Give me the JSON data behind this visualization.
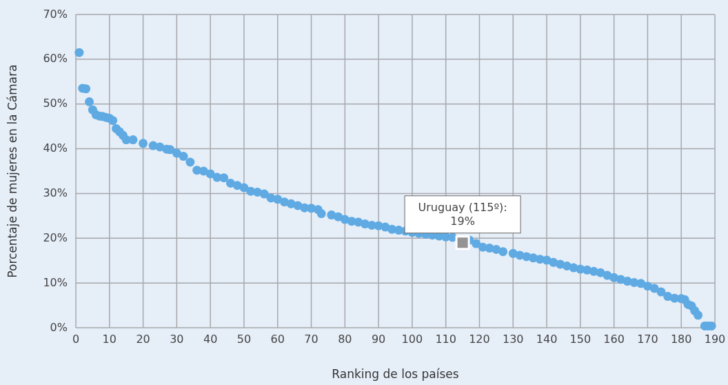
{
  "chart_data": {
    "type": "scatter",
    "xlabel": "Ranking de los países",
    "ylabel": "Porcentaje de mujeres en la Cámara",
    "xlim": [
      0,
      190
    ],
    "xticks": [
      0,
      10,
      20,
      30,
      40,
      50,
      60,
      70,
      80,
      90,
      100,
      110,
      120,
      130,
      140,
      150,
      160,
      170,
      180,
      190
    ],
    "ylim": [
      0,
      70
    ],
    "yticks": [
      {
        "value": 0,
        "label": "0%"
      },
      {
        "value": 10,
        "label": "10%"
      },
      {
        "value": 20,
        "label": "20%"
      },
      {
        "value": 30,
        "label": "30%"
      },
      {
        "value": 40,
        "label": "40%"
      },
      {
        "value": 50,
        "label": "50%"
      },
      {
        "value": 60,
        "label": "60%"
      },
      {
        "value": 70,
        "label": "70%"
      }
    ],
    "grid": true,
    "series": [
      {
        "color": "#5faae3",
        "marker": "circle",
        "x": [
          1,
          2,
          3,
          4,
          5,
          6,
          7,
          8,
          9,
          10,
          11,
          12,
          13,
          14,
          15,
          17,
          20,
          23,
          25,
          27,
          28,
          30,
          32,
          34,
          36,
          38,
          40,
          42,
          44,
          46,
          48,
          50,
          52,
          54,
          56,
          58,
          60,
          62,
          64,
          66,
          68,
          70,
          72,
          73,
          76,
          78,
          80,
          82,
          84,
          86,
          88,
          90,
          92,
          94,
          96,
          98,
          100,
          102,
          104,
          106,
          108,
          110,
          112,
          117,
          119,
          121,
          123,
          125,
          127,
          130,
          132,
          134,
          136,
          138,
          140,
          142,
          144,
          146,
          148,
          150,
          152,
          154,
          156,
          158,
          160,
          162,
          164,
          166,
          168,
          170,
          172,
          174,
          176,
          178,
          180,
          181,
          182,
          183,
          184,
          185,
          187,
          188,
          189
        ],
        "values": [
          61.5,
          53.5,
          53.4,
          50.5,
          48.7,
          47.6,
          47.3,
          47.2,
          47.0,
          46.8,
          46.3,
          44.5,
          43.8,
          43.0,
          42.0,
          42.0,
          41.2,
          40.7,
          40.4,
          39.9,
          39.8,
          39.0,
          38.3,
          37.0,
          35.2,
          35.0,
          34.4,
          33.6,
          33.5,
          32.3,
          31.8,
          31.3,
          30.5,
          30.3,
          29.9,
          29.0,
          28.7,
          28.1,
          27.7,
          27.3,
          26.8,
          26.7,
          26.4,
          25.5,
          25.2,
          24.8,
          24.2,
          23.8,
          23.6,
          23.2,
          22.9,
          22.8,
          22.5,
          22.0,
          21.8,
          21.6,
          21.3,
          21.1,
          20.9,
          20.7,
          20.5,
          20.3,
          20.2,
          19.6,
          18.8,
          18.0,
          17.8,
          17.5,
          17.0,
          16.6,
          16.2,
          15.9,
          15.6,
          15.3,
          15.1,
          14.6,
          14.2,
          13.8,
          13.4,
          13.1,
          12.9,
          12.6,
          12.3,
          11.7,
          11.2,
          10.8,
          10.4,
          10.1,
          9.9,
          9.3,
          8.8,
          8.0,
          7.0,
          6.6,
          6.5,
          6.3,
          5.2,
          4.9,
          3.8,
          2.8,
          0.4,
          0.4,
          0.4
        ]
      },
      {
        "color": "#949494",
        "marker": "square",
        "x": [
          115
        ],
        "values": [
          19
        ]
      }
    ],
    "annotations": [
      {
        "text": "Uruguay (115º):\n19%",
        "x": 115,
        "y": 19
      }
    ]
  }
}
